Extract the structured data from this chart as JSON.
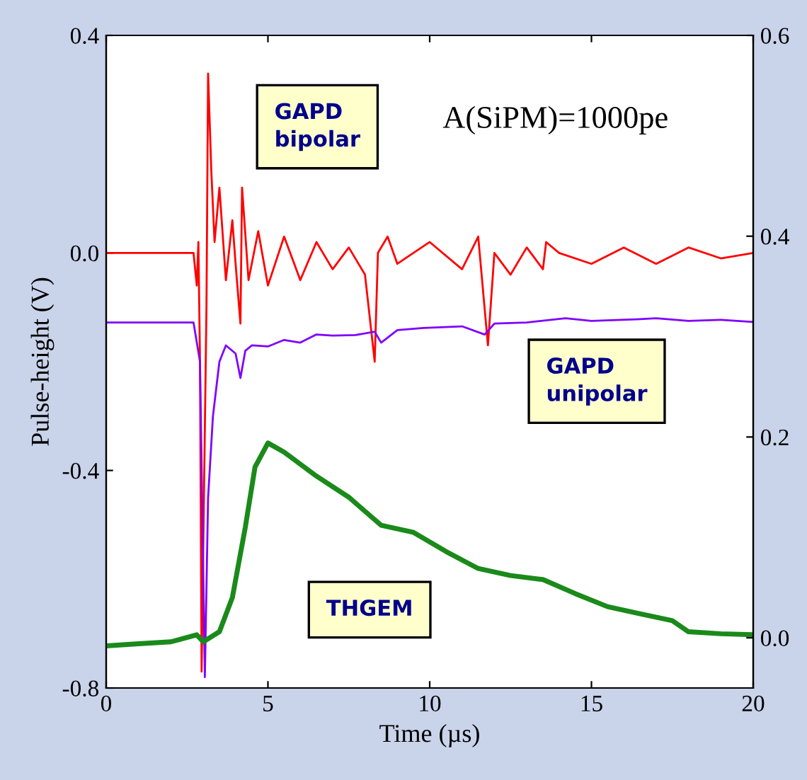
{
  "chart_data": {
    "type": "line",
    "xlabel": "Time (µs)",
    "ylabel": "Pulse-height (V)",
    "xlim": [
      0,
      20
    ],
    "xticks": [
      0,
      5,
      10,
      15,
      20
    ],
    "ylim": [
      -0.8,
      0.4
    ],
    "yticks": [
      {
        "value": -0.8,
        "label": "-0.8"
      },
      {
        "value": -0.4,
        "label": "-0.4"
      },
      {
        "value": 0.0,
        "label": "0.0"
      },
      {
        "value": 0.4,
        "label": "0.4"
      }
    ],
    "y2lim": [
      -0.05,
      0.6
    ],
    "y2ticks": [
      {
        "value": 0.0,
        "label": "0.0"
      },
      {
        "value": 0.2,
        "label": "0.2"
      },
      {
        "value": 0.4,
        "label": "0.4"
      },
      {
        "value": 0.6,
        "label": "0.6"
      }
    ],
    "grid": false,
    "legend": false,
    "marker": "none",
    "line_style": "solid",
    "annotations": [
      "A(SiPM)=1000pe"
    ],
    "series": [
      {
        "name": "GAPD bipolar",
        "color": "#ff0000",
        "x": [
          0,
          1,
          2,
          2.7,
          2.8,
          2.85,
          2.9,
          2.95,
          3.1,
          3.15,
          3.25,
          3.35,
          3.5,
          3.7,
          3.9,
          4.0,
          4.15,
          4.2,
          4.4,
          4.7,
          5,
          5.5,
          6,
          6.5,
          7,
          7.5,
          8,
          8.3,
          8.4,
          8.7,
          9,
          10,
          11,
          11.5,
          11.8,
          12,
          12.5,
          13,
          13.5,
          13.6,
          14,
          15,
          16,
          17,
          18,
          19,
          20
        ],
        "values": [
          0.0,
          0.0,
          0.0,
          0.0,
          -0.06,
          0.02,
          -0.2,
          -0.77,
          -0.1,
          0.33,
          0.15,
          0.02,
          0.12,
          -0.05,
          0.06,
          -0.02,
          -0.13,
          0.12,
          -0.05,
          0.04,
          -0.06,
          0.03,
          -0.05,
          0.02,
          -0.03,
          0.01,
          -0.04,
          -0.2,
          0.0,
          0.03,
          -0.02,
          0.02,
          -0.03,
          0.03,
          -0.17,
          0.0,
          -0.04,
          0.01,
          -0.03,
          0.02,
          0.0,
          -0.02,
          0.01,
          -0.02,
          0.01,
          -0.01,
          0.0
        ]
      },
      {
        "name": "GAPD unipolar",
        "color": "#8000ff",
        "x": [
          0,
          1,
          2,
          2.7,
          2.9,
          3.05,
          3.15,
          3.3,
          3.5,
          3.7,
          4.0,
          4.15,
          4.3,
          4.5,
          5,
          5.5,
          6,
          6.5,
          7,
          7.7,
          8.3,
          8.5,
          9,
          9.8,
          11,
          11.7,
          12,
          13,
          14.2,
          15,
          16.4,
          17,
          18,
          19,
          20
        ],
        "values": [
          -0.128,
          -0.128,
          -0.128,
          -0.128,
          -0.2,
          -0.78,
          -0.45,
          -0.3,
          -0.2,
          -0.17,
          -0.185,
          -0.23,
          -0.18,
          -0.17,
          -0.172,
          -0.16,
          -0.165,
          -0.15,
          -0.152,
          -0.151,
          -0.145,
          -0.165,
          -0.142,
          -0.138,
          -0.135,
          -0.15,
          -0.13,
          -0.128,
          -0.12,
          -0.125,
          -0.122,
          -0.12,
          -0.125,
          -0.123,
          -0.127
        ]
      },
      {
        "name": "THGEM",
        "color": "#1a8a1a",
        "axis": "y2",
        "x": [
          0,
          1,
          2,
          2.8,
          3.0,
          3.5,
          3.9,
          4.3,
          4.6,
          5.0,
          5.5,
          6.5,
          7.5,
          8.5,
          9.5,
          10.5,
          11.5,
          12.5,
          13.5,
          14.5,
          15.5,
          16.5,
          17.5,
          18,
          19,
          20
        ],
        "values": [
          -0.008,
          -0.006,
          -0.004,
          0.003,
          -0.004,
          0.006,
          0.04,
          0.11,
          0.17,
          0.194,
          0.185,
          0.161,
          0.14,
          0.112,
          0.105,
          0.086,
          0.069,
          0.062,
          0.058,
          0.044,
          0.031,
          0.024,
          0.017,
          0.006,
          0.004,
          0.003
        ]
      }
    ]
  }
}
